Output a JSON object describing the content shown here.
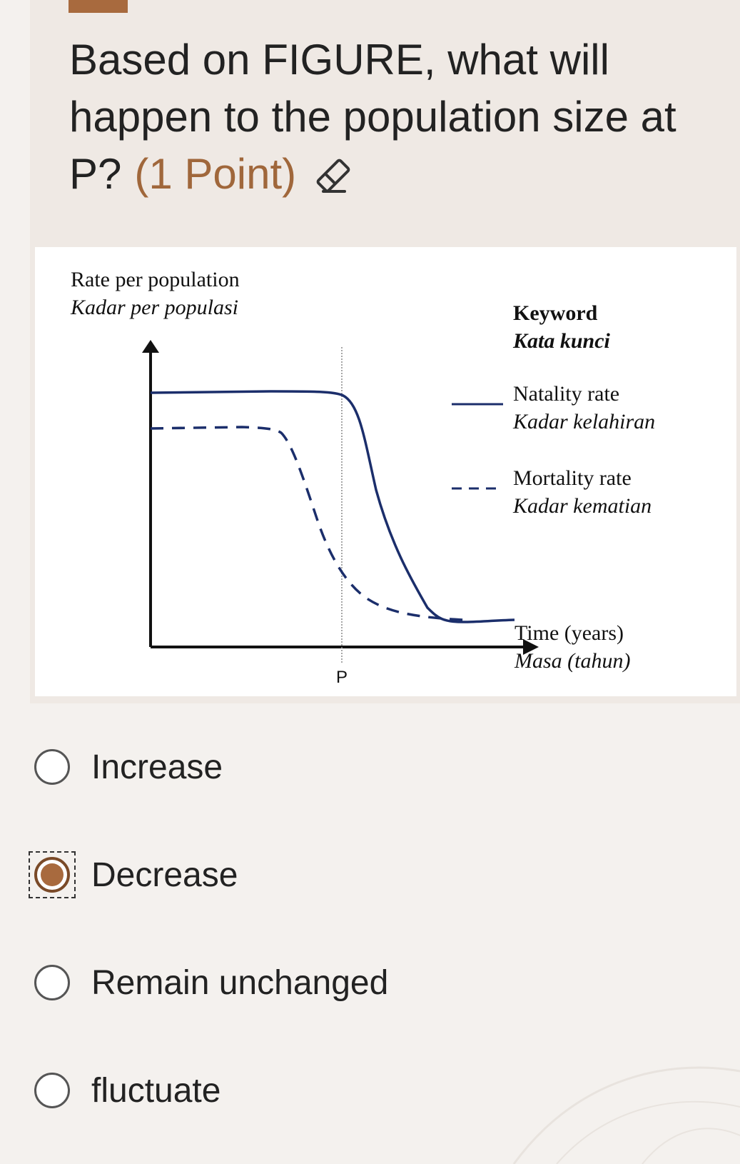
{
  "question": {
    "text": "Based on FIGURE, what will happen to the population size at P?",
    "points": "(1 Point)"
  },
  "figure": {
    "y_axis_label": "Rate per population",
    "y_axis_label_alt": "Kadar per populasi",
    "x_axis_label": "Time (years)",
    "x_axis_label_alt": "Masa (tahun)",
    "marker_label": "P",
    "legend": {
      "title": "Keyword",
      "title_alt": "Kata kunci",
      "items": [
        {
          "label": "Natality rate",
          "label_alt": "Kadar kelahiran",
          "style": "solid"
        },
        {
          "label": "Mortality rate",
          "label_alt": "Kadar kematian",
          "style": "dashed"
        }
      ]
    }
  },
  "options": [
    {
      "label": "Increase",
      "selected": false
    },
    {
      "label": "Decrease",
      "selected": true
    },
    {
      "label": "Remain unchanged",
      "selected": false
    },
    {
      "label": "fluctuate",
      "selected": false
    }
  ],
  "colors": {
    "accent": "#a86a3e",
    "curve": "#1b2e6b",
    "card_background": "#efe9e4"
  },
  "icons": {
    "edit": "eraser-icon"
  }
}
